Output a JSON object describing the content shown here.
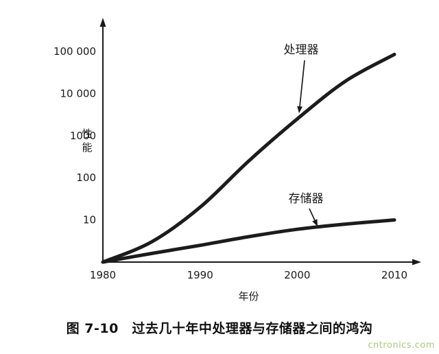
{
  "chart_data": {
    "type": "line",
    "title": "",
    "xlabel": "年份",
    "ylabel": "性能",
    "y_scale": "log",
    "grid": false,
    "xlim": [
      1980,
      2010
    ],
    "ylim": [
      1,
      100000
    ],
    "x_ticks": [
      "1980",
      "1990",
      "2000",
      "2010"
    ],
    "y_ticks": [
      {
        "label": "100 000",
        "value": 100000
      },
      {
        "label": "10 000",
        "value": 10000
      },
      {
        "label": "1000",
        "value": 1000
      },
      {
        "label": "100",
        "value": 100
      },
      {
        "label": "10",
        "value": 10
      }
    ],
    "line_color": "#1c1c1c",
    "series": [
      {
        "name": "处理器",
        "x": [
          1980,
          1985,
          1990,
          1995,
          2000,
          2005,
          2010
        ],
        "values": [
          1,
          3,
          20,
          250,
          2500,
          20000,
          85000
        ]
      },
      {
        "name": "存储器",
        "x": [
          1980,
          1985,
          1990,
          1995,
          2000,
          2005,
          2010
        ],
        "values": [
          1,
          1.6,
          2.5,
          4,
          6,
          8,
          10
        ]
      }
    ]
  },
  "caption": "图 7-10　过去几十年中处理器与存储器之间的鸿沟",
  "watermark": {
    "text": "cntronics.com",
    "color": "#a9c87e"
  }
}
